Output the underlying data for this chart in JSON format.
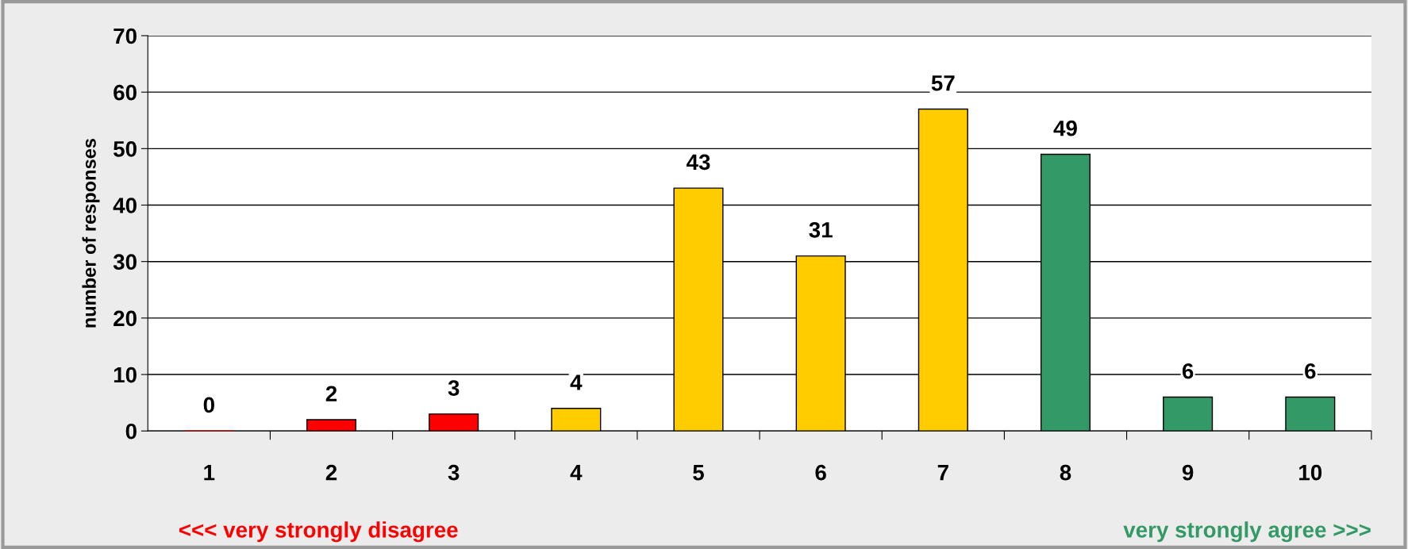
{
  "chart_data": {
    "type": "bar",
    "categories": [
      "1",
      "2",
      "3",
      "4",
      "5",
      "6",
      "7",
      "8",
      "9",
      "10"
    ],
    "values": [
      0,
      2,
      3,
      4,
      43,
      31,
      57,
      49,
      6,
      6
    ],
    "colors": [
      "#ff0000",
      "#ff0000",
      "#ff0000",
      "#ffcc00",
      "#ffcc00",
      "#ffcc00",
      "#ffcc00",
      "#339966",
      "#339966",
      "#339966"
    ],
    "ylabel": "number of responses",
    "ylim": [
      0,
      70
    ],
    "yticks": [
      0,
      10,
      20,
      30,
      40,
      50,
      60,
      70
    ],
    "grid": "y",
    "data_labels": true,
    "annotations": [
      "<<< very strongly disagree",
      "very strongly agree >>>"
    ]
  }
}
